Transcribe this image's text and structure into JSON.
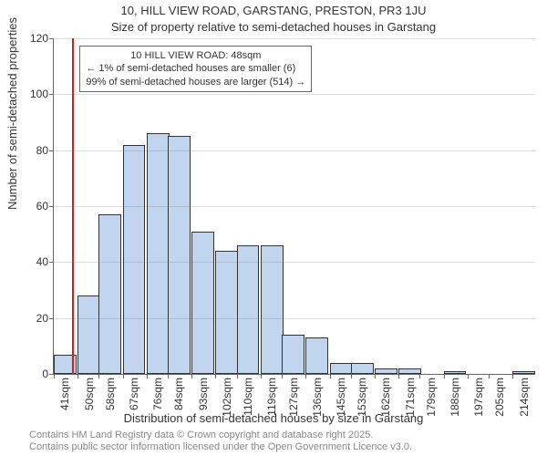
{
  "title": "10, HILL VIEW ROAD, GARSTANG, PRESTON, PR3 1JU",
  "subtitle": "Size of property relative to semi-detached houses in Garstang",
  "ylabel": "Number of semi-detached properties",
  "xlabel": "Distribution of semi-detached houses by size in Garstang",
  "footer_line1": "Contains HM Land Registry data © Crown copyright and database right 2025.",
  "footer_line2": "Contains public sector information licensed under the Open Government Licence v3.0.",
  "chart": {
    "type": "histogram",
    "ylim": [
      0,
      120
    ],
    "ytick_step": 20,
    "bar_color": "#c2d5ee",
    "bar_border": "#333333",
    "grid_color": "#666666",
    "background_color": "#ffffff",
    "refline_color": "#d02020",
    "refline_x": 48,
    "categories": [
      "41sqm",
      "50sqm",
      "58sqm",
      "67sqm",
      "76sqm",
      "84sqm",
      "93sqm",
      "102sqm",
      "110sqm",
      "119sqm",
      "127sqm",
      "136sqm",
      "145sqm",
      "153sqm",
      "162sqm",
      "171sqm",
      "179sqm",
      "188sqm",
      "197sqm",
      "205sqm",
      "214sqm"
    ],
    "category_x": [
      41,
      50,
      58,
      67,
      76,
      84,
      93,
      102,
      110,
      119,
      127,
      136,
      145,
      153,
      162,
      171,
      179,
      188,
      197,
      205,
      214
    ],
    "bin_width": 8.5,
    "values": [
      7,
      28,
      57,
      82,
      86,
      85,
      51,
      44,
      46,
      46,
      14,
      13,
      4,
      4,
      2,
      2,
      0,
      1,
      0,
      0,
      1
    ],
    "title_fontsize": 13,
    "label_fontsize": 13,
    "tick_fontsize": 12,
    "annotation_fontsize": 11
  },
  "annotation": {
    "title": "10 HILL VIEW ROAD: 48sqm",
    "line1": "← 1% of semi-detached houses are smaller (6)",
    "line2": "99% of semi-detached houses are larger (514) →"
  },
  "yticks": {
    "t0": "0",
    "t1": "20",
    "t2": "40",
    "t3": "60",
    "t4": "80",
    "t5": "100",
    "t6": "120"
  },
  "xticks": {
    "t0": "41sqm",
    "t1": "50sqm",
    "t2": "58sqm",
    "t3": "67sqm",
    "t4": "76sqm",
    "t5": "84sqm",
    "t6": "93sqm",
    "t7": "102sqm",
    "t8": "110sqm",
    "t9": "119sqm",
    "t10": "127sqm",
    "t11": "136sqm",
    "t12": "145sqm",
    "t13": "153sqm",
    "t14": "162sqm",
    "t15": "171sqm",
    "t16": "179sqm",
    "t17": "188sqm",
    "t18": "197sqm",
    "t19": "205sqm",
    "t20": "214sqm"
  }
}
